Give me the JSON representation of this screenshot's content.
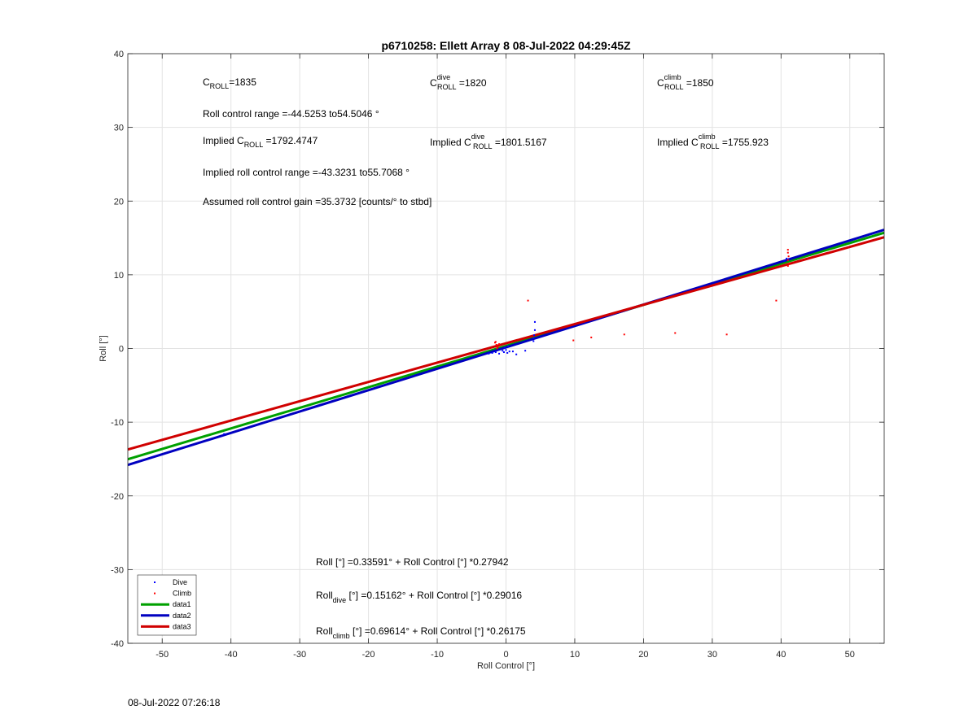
{
  "chart_data": {
    "type": "scatter",
    "title": "p6710258: Ellett Array 8 08-Jul-2022 04:29:45Z",
    "xlabel": "Roll Control [°]",
    "ylabel": "Roll [°]",
    "xlim": [
      -55,
      55
    ],
    "ylim": [
      -40,
      40
    ],
    "xticks": [
      -50,
      -40,
      -30,
      -20,
      -10,
      0,
      10,
      20,
      30,
      40,
      50
    ],
    "yticks": [
      -40,
      -30,
      -20,
      -10,
      0,
      10,
      20,
      30,
      40
    ],
    "grid": true,
    "legend_position": "bottom-left",
    "series": [
      {
        "name": "Dive",
        "kind": "points",
        "color": "#0000ff",
        "points": [
          [
            -41,
            -11.6
          ],
          [
            -2.5,
            -0.7
          ],
          [
            -2.0,
            -0.6
          ],
          [
            -1.5,
            -0.5
          ],
          [
            -1.0,
            -0.7
          ],
          [
            -0.5,
            -0.3
          ],
          [
            -0.3,
            -0.5
          ],
          [
            0.0,
            -0.2
          ],
          [
            0.2,
            -0.6
          ],
          [
            0.5,
            -0.4
          ],
          [
            -0.2,
            0.1
          ],
          [
            0.3,
            0.3
          ],
          [
            1.0,
            -0.4
          ],
          [
            1.5,
            -0.8
          ],
          [
            2.8,
            -0.3
          ],
          [
            4.0,
            1.0
          ],
          [
            4.1,
            1.8
          ],
          [
            4.2,
            2.5
          ],
          [
            4.2,
            3.6
          ],
          [
            4.0,
            1.4
          ],
          [
            40.5,
            11.9
          ],
          [
            40.8,
            12.2
          ]
        ]
      },
      {
        "name": "Climb",
        "kind": "points",
        "color": "#ff0000",
        "points": [
          [
            -1.6,
            0.8
          ],
          [
            -1.4,
            0.5
          ],
          [
            -1.2,
            0.2
          ],
          [
            -1.5,
            0.9
          ],
          [
            -1.3,
            0.0
          ],
          [
            -1.0,
            0.6
          ],
          [
            3.2,
            6.5
          ],
          [
            9.8,
            1.1
          ],
          [
            12.4,
            1.5
          ],
          [
            17.2,
            1.9
          ],
          [
            24.6,
            2.1
          ],
          [
            32.1,
            1.9
          ],
          [
            39.3,
            6.5
          ],
          [
            41.0,
            13.4
          ],
          [
            41.0,
            13.0
          ],
          [
            41.1,
            12.5
          ],
          [
            41.0,
            12.0
          ],
          [
            41.2,
            11.5
          ],
          [
            41.0,
            11.2
          ]
        ]
      },
      {
        "name": "data1",
        "kind": "line",
        "color": "#00a000",
        "intercept": 0.33591,
        "slope": 0.27942
      },
      {
        "name": "data2",
        "kind": "line",
        "color": "#0000c0",
        "intercept": 0.15162,
        "slope": 0.29016
      },
      {
        "name": "data3",
        "kind": "line",
        "color": "#d00000",
        "intercept": 0.69614,
        "slope": 0.26175
      }
    ]
  },
  "annotations": {
    "c_roll": {
      "base": "C",
      "sub": "ROLL",
      "value": "=1835"
    },
    "c_roll_dive": {
      "base": "C",
      "sup": "dive",
      "sub": "ROLL",
      "value": " =1820"
    },
    "c_roll_climb": {
      "base": "C",
      "sup": "climb",
      "sub": "ROLL",
      "value": " =1850"
    },
    "roll_control_range": "Roll control range =-44.5253 to54.5046 °",
    "implied_c_roll": {
      "prefix": "Implied C",
      "sub": "ROLL",
      "value": " =1792.4747"
    },
    "implied_c_roll_dive": {
      "prefix": "Implied C",
      "sup": "dive",
      "sub": "ROLL",
      "value": " =1801.5167"
    },
    "implied_c_roll_climb": {
      "prefix": "Implied C",
      "sup": "climb",
      "sub": "ROLL",
      "value": " =1755.923"
    },
    "implied_roll_control_range": "Implied roll control range =-43.3231 to55.7068 °",
    "assumed_gain": "Assumed roll control gain =35.3732 [counts/° to stbd]",
    "fit_all": "Roll [°] =0.33591° + Roll Control [°] *0.27942",
    "fit_dive": {
      "prefix": "Roll",
      "sub": "dive",
      "value": " [°] =0.15162° + Roll Control [°] *0.29016"
    },
    "fit_climb": {
      "prefix": "Roll",
      "sub": "climb",
      "value": " [°] =0.69614° + Roll Control [°] *0.26175"
    }
  },
  "footer": {
    "timestamp": "08-Jul-2022 07:26:18"
  }
}
